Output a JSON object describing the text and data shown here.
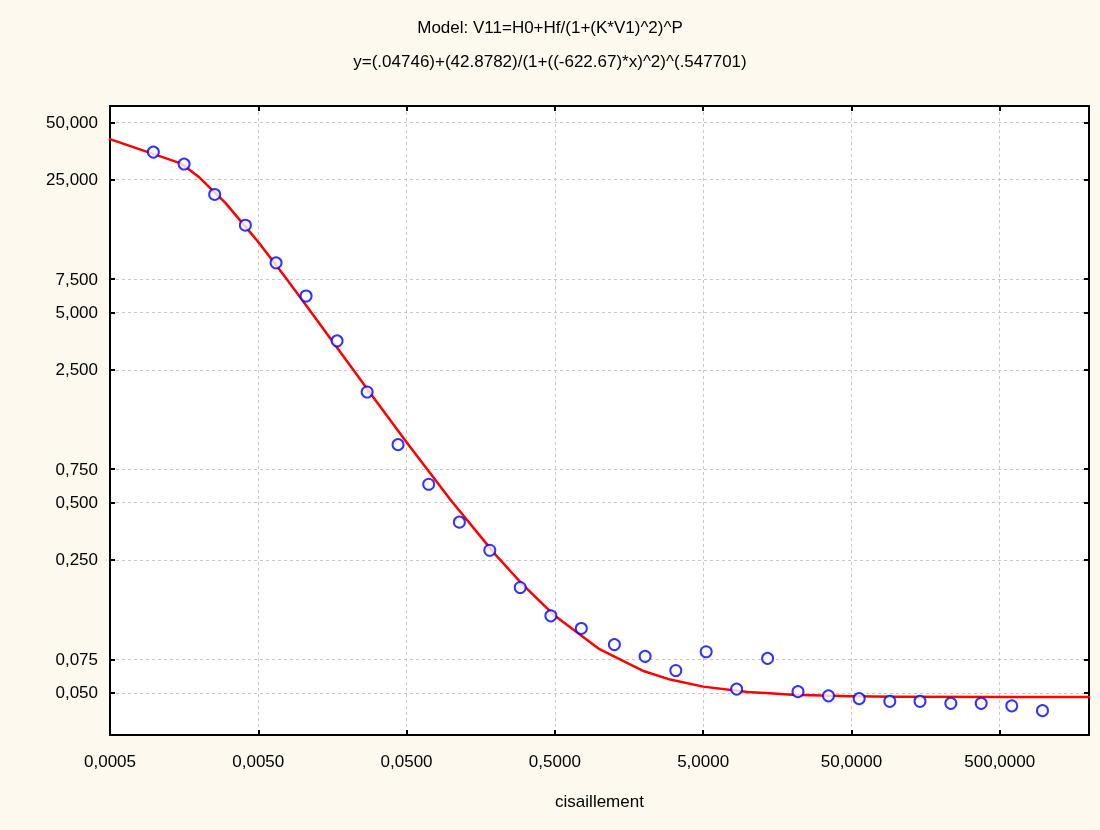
{
  "chart_data": {
    "type": "scatter",
    "title": "Model: V11=H0+Hf/(1+(K*V1)^2)^P",
    "subtitle": "y=(.04746)+(42.8782)/(1+((-622.67)*x)^2)^(.547701)",
    "xlabel": "cisaillement",
    "log": "xy",
    "grid": true,
    "xlim": [
      0.0005,
      2000
    ],
    "xticks": [
      {
        "value": 0.0005,
        "label": "0,0005"
      },
      {
        "value": 0.005,
        "label": "0,0050"
      },
      {
        "value": 0.05,
        "label": "0,0500"
      },
      {
        "value": 0.5,
        "label": "0,5000"
      },
      {
        "value": 5,
        "label": "5,0000"
      },
      {
        "value": 50,
        "label": "50,0000"
      },
      {
        "value": 500,
        "label": "500,0000"
      }
    ],
    "ylim": [
      0.03,
      61
    ],
    "yticks": [
      {
        "value": 0.05,
        "label": "0,050"
      },
      {
        "value": 0.075,
        "label": "0,075"
      },
      {
        "value": 0.25,
        "label": "0,250"
      },
      {
        "value": 0.5,
        "label": "0,500"
      },
      {
        "value": 0.75,
        "label": "0,750"
      },
      {
        "value": 2.5,
        "label": "2,500"
      },
      {
        "value": 5,
        "label": "5,000"
      },
      {
        "value": 7.5,
        "label": "7,500"
      },
      {
        "value": 25,
        "label": "25,000"
      },
      {
        "value": 50,
        "label": "50,000"
      }
    ],
    "series": [
      {
        "marker": "circle",
        "color": "#0000ff",
        "x": [
          0.00098,
          0.00158,
          0.00254,
          0.00409,
          0.00659,
          0.0105,
          0.017,
          0.0271,
          0.0438,
          0.0705,
          0.1135,
          0.182,
          0.292,
          0.47,
          0.754,
          1.26,
          2.03,
          3.27,
          5.24,
          8.41,
          13.6,
          21.8,
          35,
          56.4,
          90.7,
          145,
          234,
          375,
          603,
          971
        ],
        "values": [
          34.9,
          30.2,
          20.9,
          14.4,
          9.13,
          6.11,
          3.55,
          1.91,
          1.01,
          0.625,
          0.395,
          0.281,
          0.179,
          0.127,
          0.109,
          0.0897,
          0.0778,
          0.0655,
          0.0822,
          0.0523,
          0.0759,
          0.0507,
          0.0482,
          0.0466,
          0.0451,
          0.0451,
          0.044,
          0.044,
          0.0427,
          0.0403
        ]
      },
      {
        "type": "line",
        "marker": "none",
        "line_style": "solid",
        "color": "#ff0000",
        "x": [
          0.0005,
          0.0015,
          0.002,
          0.003,
          0.005,
          0.0075,
          0.01,
          0.02,
          0.03,
          0.05,
          0.1,
          0.2,
          0.3,
          0.5,
          1,
          2,
          3,
          5,
          10,
          20,
          50,
          100,
          1000,
          2000
        ],
        "values": [
          40.81,
          30.46,
          25.72,
          18.88,
          11.76,
          7.78,
          5.75,
          2.75,
          1.78,
          1.039,
          0.512,
          0.265,
          0.187,
          0.127,
          0.0848,
          0.0649,
          0.0587,
          0.0539,
          0.0505,
          0.0489,
          0.048,
          0.0477,
          0.0475,
          0.0475
        ]
      }
    ]
  }
}
